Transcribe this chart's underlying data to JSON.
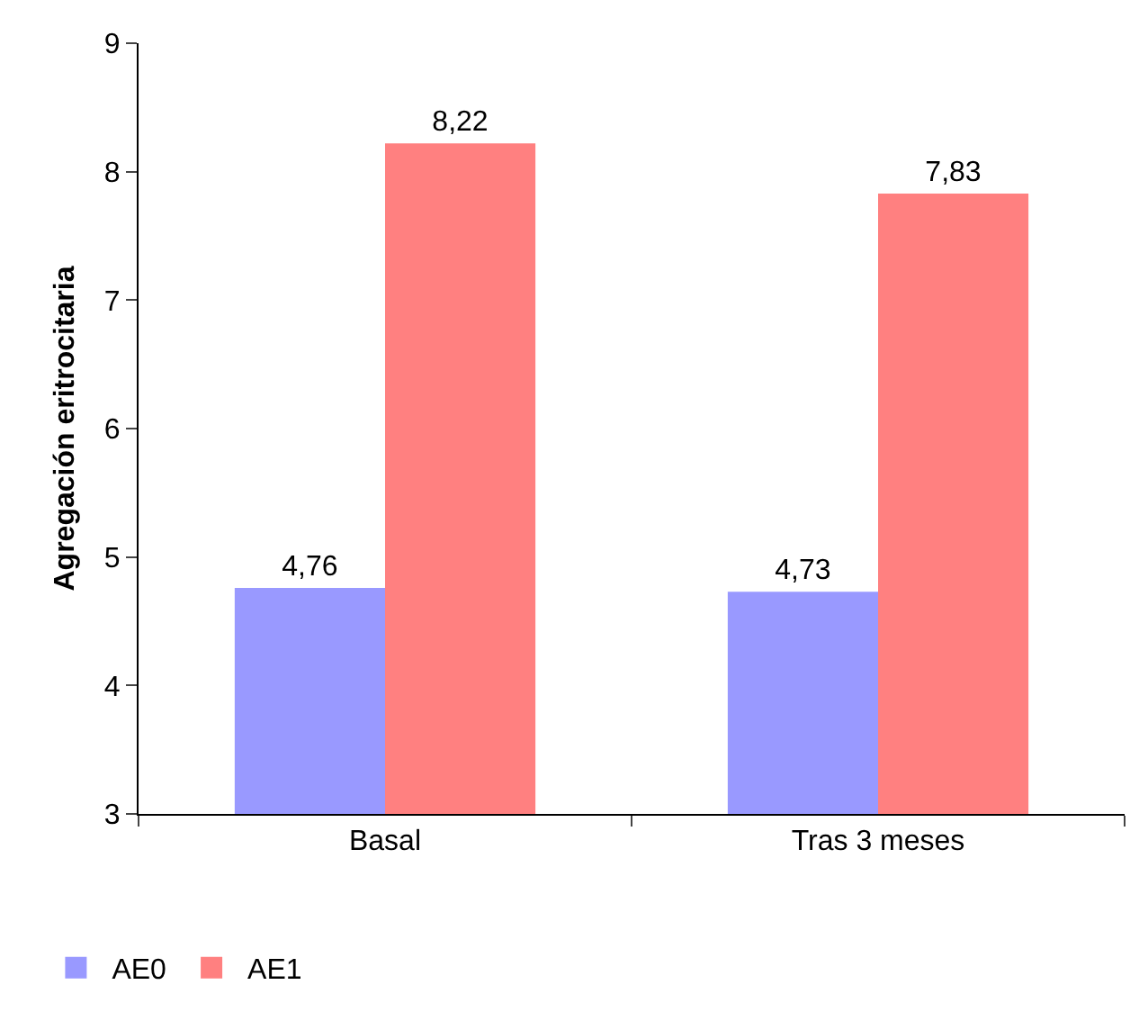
{
  "chart_data": {
    "type": "bar",
    "ylabel": "Agregación eritrocitaria",
    "categories": [
      "Basal",
      "Tras 3 meses"
    ],
    "series": [
      {
        "name": "AE0",
        "color": "#9999ff",
        "values": [
          4.76,
          4.73
        ],
        "value_labels": [
          "4,76",
          "4,73"
        ]
      },
      {
        "name": "AE1",
        "color": "#ff8080",
        "values": [
          8.22,
          7.83
        ],
        "value_labels": [
          "8,22",
          "7,83"
        ]
      }
    ],
    "ylim": [
      3,
      9
    ],
    "yticks": [
      3,
      4,
      5,
      6,
      7,
      8,
      9
    ],
    "grid": false,
    "legend": "bottom left"
  }
}
